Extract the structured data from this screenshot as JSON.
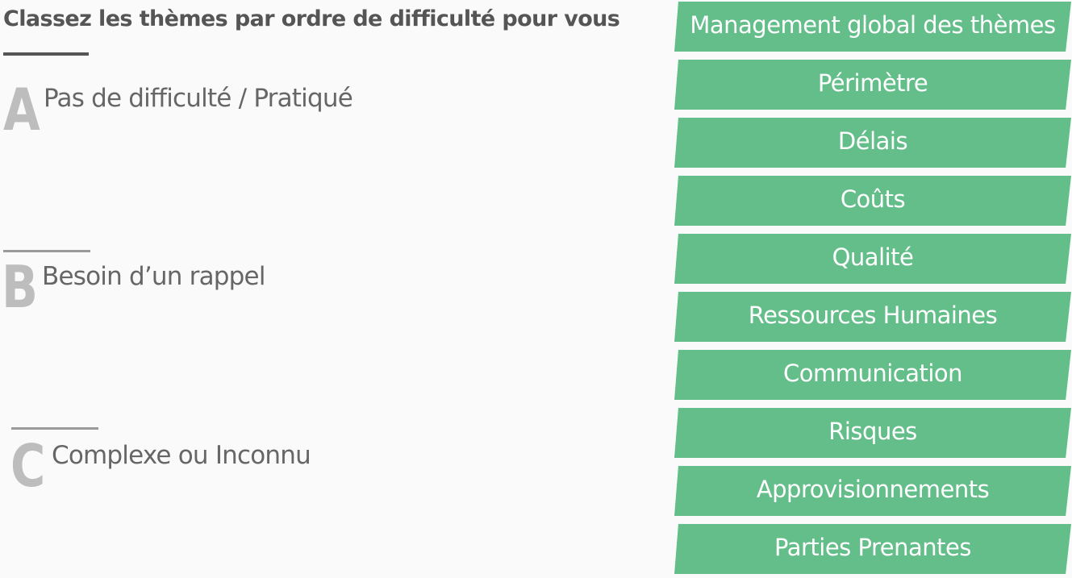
{
  "header": {
    "title": "Classez les thèmes par ordre de difficulté pour vous"
  },
  "categories": [
    {
      "letter": "A",
      "label": "Pas de difficulté / Pratiqué"
    },
    {
      "letter": "B",
      "label": "Besoin d’un rappel"
    },
    {
      "letter": "C",
      "label": "Complexe ou Inconnu"
    }
  ],
  "themes": [
    {
      "label": "Management global des thèmes"
    },
    {
      "label": "Périmètre"
    },
    {
      "label": "Délais"
    },
    {
      "label": "Coûts"
    },
    {
      "label": "Qualité"
    },
    {
      "label": "Ressources Humaines"
    },
    {
      "label": "Communication"
    },
    {
      "label": "Risques"
    },
    {
      "label": "Approvisionnements"
    },
    {
      "label": "Parties Prenantes"
    }
  ],
  "colors": {
    "theme_bg": "#63be8a",
    "theme_text": "#ffffff",
    "title_text": "#555555",
    "letter": "#bdbdbd",
    "category_text": "#666666"
  }
}
